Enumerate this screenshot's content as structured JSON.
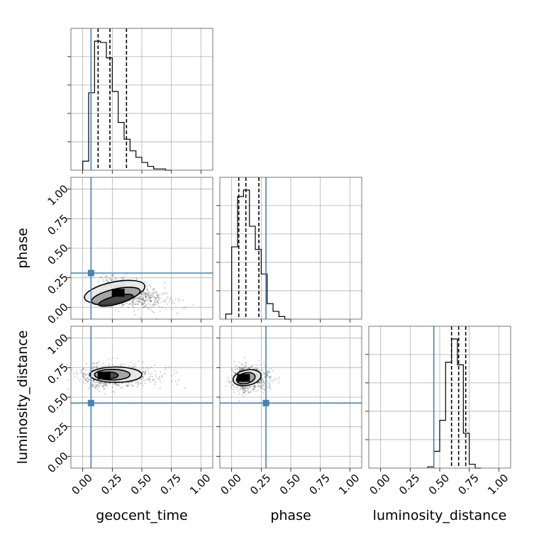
{
  "chart_data": {
    "type": "corner",
    "parameters": [
      "geocent_time",
      "phase",
      "luminosity_distance"
    ],
    "truths": {
      "geocent_time": 0.07,
      "phase": 0.29,
      "luminosity_distance": 0.45
    },
    "truth_color": "#4682b4",
    "tick_values": [
      0.0,
      0.25,
      0.5,
      0.75,
      1.0
    ],
    "tick_labels": [
      "0.00",
      "0.25",
      "0.50",
      "0.75",
      "1.00"
    ],
    "axis_range": [
      -0.1,
      1.1
    ],
    "grid": true,
    "histograms": {
      "geocent_time": {
        "bin_edges": [
          0.0,
          0.05,
          0.1,
          0.15,
          0.2,
          0.25,
          0.3,
          0.35,
          0.4,
          0.45,
          0.5,
          0.55,
          0.6,
          0.65,
          0.7,
          0.75
        ],
        "values": [
          0.07,
          0.6,
          1.0,
          0.99,
          0.87,
          0.61,
          0.37,
          0.24,
          0.15,
          0.1,
          0.06,
          0.03,
          0.01,
          0.01,
          0.0
        ],
        "quantiles": [
          0.13,
          0.23,
          0.37
        ]
      },
      "phase": {
        "bin_edges": [
          -0.05,
          0.0,
          0.05,
          0.1,
          0.15,
          0.2,
          0.25,
          0.3,
          0.35,
          0.4,
          0.45,
          0.5
        ],
        "values": [
          0.04,
          0.56,
          0.95,
          1.0,
          0.72,
          0.54,
          0.35,
          0.12,
          0.06,
          0.02,
          0.0
        ],
        "quantiles": [
          0.06,
          0.12,
          0.23
        ]
      },
      "luminosity_distance": {
        "bin_edges": [
          0.4,
          0.45,
          0.5,
          0.55,
          0.6,
          0.65,
          0.7,
          0.75,
          0.8,
          0.85
        ],
        "values": [
          0.01,
          0.13,
          0.37,
          0.82,
          1.0,
          0.8,
          0.27,
          0.03,
          0.0
        ],
        "quantiles": [
          0.6,
          0.66,
          0.72
        ]
      }
    },
    "pairs": [
      {
        "x": "geocent_time",
        "y": "phase",
        "peak": [
          0.3,
          0.12
        ]
      },
      {
        "x": "geocent_time",
        "y": "luminosity_distance",
        "peak": [
          0.18,
          0.68
        ]
      },
      {
        "x": "phase",
        "y": "luminosity_distance",
        "peak": [
          0.1,
          0.66
        ]
      }
    ]
  }
}
